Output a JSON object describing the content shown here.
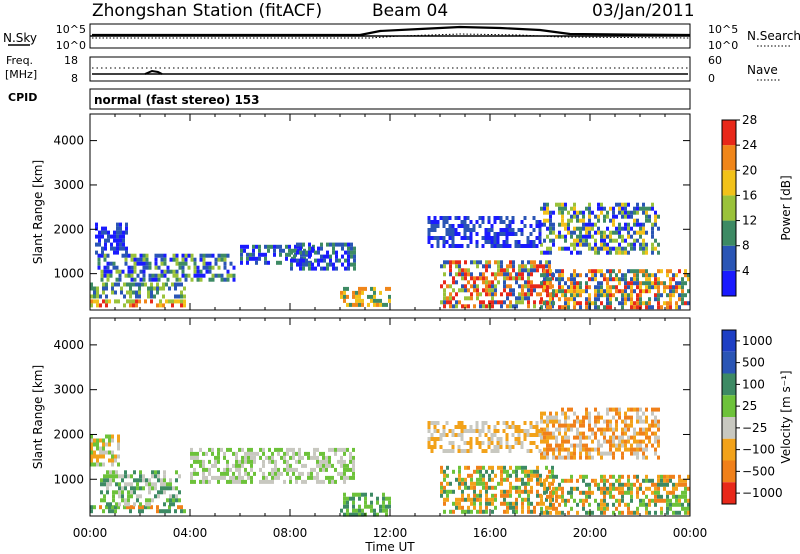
{
  "header": {
    "title": "Zhongshan Station (fitACF)",
    "beam": "Beam 04",
    "date": "03/Jan/2011"
  },
  "aux_panels": {
    "nsky_label": "N.Sky",
    "nsky_ticks": [
      "10^5",
      "10^0"
    ],
    "nsearch_label": "N.Search",
    "nsearch_ticks": [
      "10^5",
      "10^0"
    ],
    "freq_label_1": "Freq.",
    "freq_label_2": "[MHz]",
    "freq_ticks": [
      "18",
      "8"
    ],
    "nave_label": "Nave",
    "nave_ticks": [
      "60",
      "0"
    ],
    "cpid_label": "CPID",
    "cpid_value": "normal (fast stereo) 153"
  },
  "chart_data": [
    {
      "type": "heatmap",
      "name": "power",
      "ylabel": "Slant Range [km]",
      "xlabel": "",
      "ylim": [
        180,
        4600
      ],
      "yticks": [
        1000,
        2000,
        3000,
        4000
      ],
      "colorbar_label": "Power [dB]",
      "colorbar_ticks": [
        "4",
        "8",
        "12",
        "16",
        "20",
        "24",
        "28"
      ],
      "colorbar_colors": [
        "#1a1aff",
        "#2a55b5",
        "#3d8a64",
        "#9ac23a",
        "#f2c21a",
        "#f0861a",
        "#e8281a"
      ],
      "regions": [
        {
          "t0": 0.0,
          "t1": 3.8,
          "r0": 250,
          "r1": 420,
          "levels": [
            6,
            5,
            4,
            3
          ]
        },
        {
          "t0": 0.0,
          "t1": 3.8,
          "r0": 450,
          "r1": 800,
          "levels": [
            2,
            1,
            3
          ]
        },
        {
          "t0": 0.3,
          "t1": 5.8,
          "r0": 900,
          "r1": 1450,
          "levels": [
            1,
            0,
            2,
            3
          ]
        },
        {
          "t0": 0.2,
          "t1": 1.5,
          "r0": 1450,
          "r1": 2150,
          "levels": [
            0,
            1
          ]
        },
        {
          "t0": 6.0,
          "t1": 9.0,
          "r0": 1200,
          "r1": 1650,
          "levels": [
            1,
            0,
            2
          ]
        },
        {
          "t0": 8.0,
          "t1": 10.6,
          "r0": 1100,
          "r1": 1700,
          "levels": [
            0,
            1,
            2
          ]
        },
        {
          "t0": 10.0,
          "t1": 12.0,
          "r0": 250,
          "r1": 700,
          "levels": [
            2,
            4,
            5
          ]
        },
        {
          "t0": 14.0,
          "t1": 18.5,
          "r0": 300,
          "r1": 1300,
          "levels": [
            1,
            3,
            5,
            6
          ]
        },
        {
          "t0": 18.0,
          "t1": 24.0,
          "r0": 250,
          "r1": 1100,
          "levels": [
            2,
            4,
            5,
            6,
            1
          ]
        },
        {
          "t0": 18.0,
          "t1": 22.8,
          "r0": 1500,
          "r1": 2600,
          "levels": [
            1,
            2,
            3,
            4,
            0
          ]
        },
        {
          "t0": 13.5,
          "t1": 18.0,
          "r0": 1600,
          "r1": 2300,
          "levels": [
            0,
            1
          ]
        }
      ]
    },
    {
      "type": "heatmap",
      "name": "velocity",
      "ylabel": "Slant Range [km]",
      "xlabel": "Time UT",
      "ylim": [
        180,
        4600
      ],
      "yticks": [
        1000,
        2000,
        3000,
        4000
      ],
      "xticks": [
        "00:00",
        "04:00",
        "08:00",
        "12:00",
        "16:00",
        "20:00",
        "00:00"
      ],
      "colorbar_label": "Velocity [m s⁻¹]",
      "colorbar_ticks": [
        "1000",
        "500",
        "100",
        "25",
        "−25",
        "−100",
        "−500",
        "−1000"
      ],
      "colorbar_colors": [
        "#1e3fc4",
        "#2a55b5",
        "#3d8a64",
        "#6dc23a",
        "#c8c8c0",
        "#f2a21a",
        "#f0801a",
        "#e8281a"
      ],
      "regions": [
        {
          "t0": 0.0,
          "t1": 3.8,
          "r0": 250,
          "r1": 420,
          "levels": [
            2,
            3,
            6
          ]
        },
        {
          "t0": 0.4,
          "t1": 3.6,
          "r0": 450,
          "r1": 1200,
          "levels": [
            2,
            3,
            4
          ]
        },
        {
          "t0": 0.0,
          "t1": 1.2,
          "r0": 1300,
          "r1": 2000,
          "levels": [
            4,
            5,
            3
          ]
        },
        {
          "t0": 4.0,
          "t1": 10.5,
          "r0": 900,
          "r1": 1700,
          "levels": [
            4,
            3
          ]
        },
        {
          "t0": 10.0,
          "t1": 12.0,
          "r0": 250,
          "r1": 700,
          "levels": [
            2,
            3
          ]
        },
        {
          "t0": 14.0,
          "t1": 18.5,
          "r0": 300,
          "r1": 1300,
          "levels": [
            5,
            6,
            2,
            3
          ]
        },
        {
          "t0": 18.0,
          "t1": 24.0,
          "r0": 250,
          "r1": 1100,
          "levels": [
            2,
            3,
            5,
            6
          ]
        },
        {
          "t0": 18.0,
          "t1": 22.8,
          "r0": 1500,
          "r1": 2600,
          "levels": [
            4,
            5,
            6
          ]
        },
        {
          "t0": 13.5,
          "t1": 18.0,
          "r0": 1600,
          "r1": 2300,
          "levels": [
            4,
            5
          ]
        }
      ]
    }
  ]
}
